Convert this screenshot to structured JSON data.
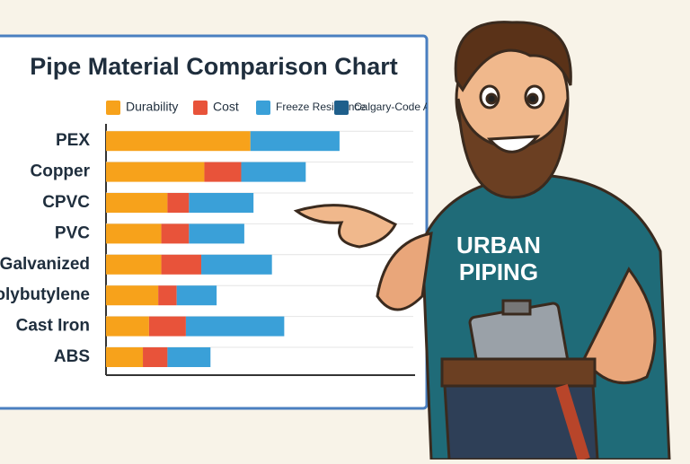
{
  "chart_data": {
    "type": "stacked-bar-horizontal",
    "title": "Pipe Material Comparison Chart",
    "categories": [
      "PEX",
      "Copper",
      "CPVC",
      "PVC",
      "Galvanized",
      "Polybutylene",
      "Cast Iron",
      "ABS"
    ],
    "series": [
      {
        "name": "Durability",
        "color": "#f7a21b",
        "values": [
          47,
          32,
          20,
          18,
          18,
          17,
          14,
          12
        ]
      },
      {
        "name": "Cost",
        "color": "#e8533a",
        "values": [
          0,
          12,
          7,
          9,
          13,
          6,
          12,
          8
        ]
      },
      {
        "name": "Freeze Resistance",
        "color": "#3aa0d8",
        "values": [
          29,
          21,
          21,
          18,
          23,
          13,
          32,
          14
        ]
      },
      {
        "name": "Calgary-Code Apprd",
        "color": "#1f5f8b",
        "values": [
          null,
          null,
          null,
          null,
          null,
          null,
          null,
          null
        ]
      }
    ],
    "xlim": [
      0,
      100
    ]
  },
  "illustration": {
    "shirt_text": [
      "URBAN",
      "PIPING"
    ]
  }
}
